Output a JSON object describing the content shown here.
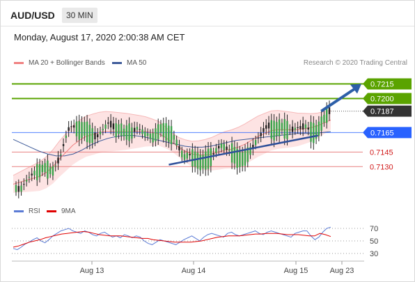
{
  "header": {
    "symbol": "AUD/USD",
    "timeframe": "30 MIN"
  },
  "datetime": "Monday, August 17, 2020 2:00:38 AM CET",
  "legend": {
    "ma20": {
      "label": "MA 20 + Bollinger Bands",
      "color": "#f08080"
    },
    "ma50": {
      "label": "MA 50",
      "color": "#3d5a99"
    },
    "credit": "Research © 2020 Trading Central"
  },
  "rsi_legend": {
    "rsi": {
      "label": "RSI",
      "color": "#5b7bd5"
    },
    "ma": {
      "label": "9MA",
      "color": "#e00000"
    }
  },
  "chart_data": [
    {
      "type": "line",
      "ylim": [
        0.7093,
        0.7229
      ],
      "levels": [
        {
          "value": 0.7215,
          "label": "0.7215",
          "style": "green",
          "color": "#5aa300"
        },
        {
          "value": 0.72,
          "label": "0.7200",
          "style": "green",
          "color": "#5aa300"
        },
        {
          "value": 0.7187,
          "label": "0.7187",
          "style": "price",
          "color": "#333333"
        },
        {
          "value": 0.7165,
          "label": "0.7165",
          "style": "blue",
          "color": "#2962ff"
        },
        {
          "value": 0.7145,
          "label": "0.7145",
          "style": "red",
          "color": "#d11a1a"
        },
        {
          "value": 0.713,
          "label": "0.7130",
          "style": "red",
          "color": "#d11a1a"
        }
      ],
      "x_ticks": [
        "Aug 13",
        "Aug 14",
        "Aug 15",
        "Aug 23"
      ],
      "price_path": [
        0.7108,
        0.7106,
        0.7112,
        0.7118,
        0.7122,
        0.7125,
        0.7127,
        0.713,
        0.7128,
        0.7125,
        0.7132,
        0.714,
        0.7155,
        0.7168,
        0.7172,
        0.717,
        0.7168,
        0.717,
        0.7166,
        0.7163,
        0.716,
        0.7165,
        0.717,
        0.7175,
        0.7172,
        0.7168,
        0.717,
        0.7165,
        0.7167,
        0.7165,
        0.717,
        0.7168,
        0.7164,
        0.7163,
        0.716,
        0.7165,
        0.717,
        0.7168,
        0.7165,
        0.7163,
        0.7155,
        0.7145,
        0.714,
        0.7143,
        0.714,
        0.7138,
        0.7135,
        0.7137,
        0.714,
        0.7142,
        0.7148,
        0.7152,
        0.715,
        0.7147,
        0.7145,
        0.714,
        0.7138,
        0.714,
        0.7145,
        0.715,
        0.7158,
        0.7163,
        0.717,
        0.7172,
        0.7168,
        0.717,
        0.7172,
        0.717,
        0.7168,
        0.7168,
        0.717,
        0.717,
        0.7172,
        0.7168,
        0.7166,
        0.7167,
        0.7175,
        0.7182,
        0.7187
      ],
      "ma20": [
        0.7112,
        0.7114,
        0.7116,
        0.7118,
        0.712,
        0.7124,
        0.713,
        0.7138,
        0.7145,
        0.7152,
        0.7157,
        0.7161,
        0.7163,
        0.7165,
        0.7166,
        0.7166,
        0.7166,
        0.7166,
        0.7166,
        0.7166,
        0.7166,
        0.7165,
        0.7164,
        0.716,
        0.7155,
        0.715,
        0.7146,
        0.7143,
        0.7142,
        0.7142,
        0.7143,
        0.7145,
        0.7147,
        0.7148,
        0.715,
        0.7153,
        0.7157,
        0.7161,
        0.7164,
        0.7167,
        0.7168,
        0.7168,
        0.7168,
        0.7168,
        0.7169,
        0.717,
        0.7172,
        0.7175,
        0.7178
      ],
      "ma50": [
        0.7158,
        0.7154,
        0.715,
        0.7146,
        0.7143,
        0.7141,
        0.7141,
        0.7143,
        0.7147,
        0.7152,
        0.7156,
        0.7159,
        0.7161,
        0.7162,
        0.7162,
        0.7161,
        0.7159,
        0.7157,
        0.7155,
        0.7153,
        0.7151,
        0.715,
        0.715,
        0.7151,
        0.7153,
        0.7155,
        0.7157,
        0.7158,
        0.7159,
        0.716,
        0.7161,
        0.7162,
        0.7163,
        0.7164,
        0.7164,
        0.7164,
        0.7165,
        0.7166
      ],
      "trendline": [
        {
          "x": 0.49,
          "y": 0.7132
        },
        {
          "x": 0.96,
          "y": 0.7162
        }
      ],
      "forecast_arrow": [
        {
          "x": 0.97,
          "y": 0.7187
        },
        {
          "x": 1.0,
          "y": 0.7215
        }
      ]
    },
    {
      "type": "line",
      "ylim": [
        20,
        80
      ],
      "y_ticks": [
        70,
        50,
        30
      ],
      "rsi": [
        38,
        36,
        40,
        45,
        48,
        52,
        55,
        50,
        47,
        52,
        58,
        62,
        66,
        68,
        70,
        66,
        64,
        62,
        66,
        64,
        60,
        58,
        62,
        64,
        60,
        56,
        58,
        55,
        60,
        58,
        55,
        58,
        56,
        50,
        46,
        44,
        48,
        52,
        50,
        48,
        46,
        44,
        48,
        52,
        55,
        58,
        54,
        50,
        56,
        60,
        62,
        60,
        58,
        56,
        62,
        64,
        60,
        58,
        60,
        62,
        64,
        66,
        62,
        60,
        64,
        66,
        64,
        62,
        60,
        58,
        56,
        62,
        64,
        66,
        66,
        58,
        52,
        56,
        64,
        70,
        72
      ],
      "ma9": [
        40,
        42,
        45,
        48,
        50,
        52,
        55,
        57,
        59,
        61,
        62,
        63,
        64,
        65,
        64,
        62,
        60,
        59,
        58,
        58,
        58,
        57,
        56,
        55,
        54,
        54,
        52,
        51,
        50,
        49,
        48,
        48,
        48,
        48,
        49,
        50,
        52,
        54,
        56,
        57,
        58,
        58,
        58,
        59,
        60,
        61,
        61,
        62,
        62,
        62,
        61,
        60,
        60,
        60,
        59,
        58,
        58,
        62,
        60,
        57
      ]
    }
  ]
}
